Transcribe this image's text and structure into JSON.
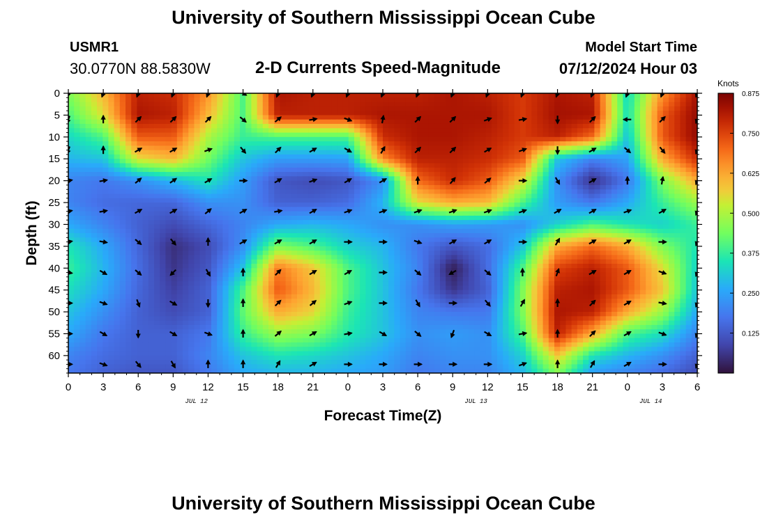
{
  "page_title": "University of Southern Mississippi Ocean Cube",
  "footer_title": "University of Southern Mississippi Ocean Cube",
  "station": {
    "name": "USMR1",
    "coords": "30.0770N  88.5830W"
  },
  "model_start": {
    "label": "Model Start Time",
    "value": "07/12/2024 Hour 03"
  },
  "chart_data": {
    "type": "heatmap",
    "title": "2-D Currents Speed-Magnitude",
    "xlabel": "Forecast Time(Z)",
    "ylabel": "Depth (ft)",
    "x_tick_labels": [
      "0",
      "3",
      "6",
      "9",
      "12",
      "15",
      "18",
      "21",
      "0",
      "3",
      "6",
      "9",
      "12",
      "15",
      "18",
      "21",
      "0",
      "3",
      "6"
    ],
    "x_hours": [
      0,
      3,
      6,
      9,
      12,
      15,
      18,
      21,
      24,
      27,
      30,
      33,
      36,
      39,
      42,
      45,
      48,
      51,
      54
    ],
    "xlim_hours": [
      0,
      54
    ],
    "date_labels": [
      {
        "label": "JUL 12",
        "hour": 11
      },
      {
        "label": "JUL 13",
        "hour": 35
      },
      {
        "label": "JUL 14",
        "hour": 50
      }
    ],
    "y_ticks": [
      0,
      5,
      10,
      15,
      20,
      25,
      30,
      35,
      40,
      45,
      50,
      55,
      60
    ],
    "ylim": [
      0,
      64
    ],
    "y_inverted": true,
    "colorbar": {
      "unit": "Knots",
      "ticks": [
        "0.125",
        "0.250",
        "0.375",
        "0.500",
        "0.625",
        "0.750",
        "0.875"
      ],
      "tick_values": [
        0.125,
        0.25,
        0.375,
        0.5,
        0.625,
        0.75,
        0.875
      ],
      "range": [
        0,
        0.875
      ],
      "colormap": "turbo"
    },
    "speed_grid": {
      "hours": [
        0,
        3,
        6,
        9,
        12,
        15,
        18,
        21,
        24,
        27,
        30,
        33,
        36,
        39,
        42,
        45,
        48,
        51,
        54
      ],
      "depths": [
        0,
        5,
        10,
        15,
        20,
        25,
        30,
        35,
        40,
        45,
        50,
        55,
        60,
        64
      ],
      "values": [
        [
          0.45,
          0.6,
          0.8,
          0.78,
          0.65,
          0.4,
          0.82,
          0.8,
          0.8,
          0.8,
          0.8,
          0.82,
          0.8,
          0.76,
          0.82,
          0.8,
          0.33,
          0.65,
          0.83
        ],
        [
          0.4,
          0.55,
          0.82,
          0.8,
          0.6,
          0.4,
          0.8,
          0.8,
          0.8,
          0.82,
          0.82,
          0.82,
          0.82,
          0.76,
          0.83,
          0.82,
          0.34,
          0.72,
          0.85
        ],
        [
          0.33,
          0.4,
          0.72,
          0.72,
          0.5,
          0.38,
          0.4,
          0.4,
          0.4,
          0.78,
          0.82,
          0.82,
          0.8,
          0.76,
          0.8,
          0.7,
          0.3,
          0.72,
          0.85
        ],
        [
          0.28,
          0.3,
          0.55,
          0.6,
          0.44,
          0.3,
          0.24,
          0.24,
          0.25,
          0.66,
          0.8,
          0.8,
          0.78,
          0.72,
          0.3,
          0.2,
          0.25,
          0.62,
          0.78
        ],
        [
          0.2,
          0.18,
          0.22,
          0.28,
          0.35,
          0.24,
          0.12,
          0.1,
          0.12,
          0.22,
          0.7,
          0.78,
          0.72,
          0.55,
          0.22,
          0.05,
          0.18,
          0.45,
          0.62
        ],
        [
          0.2,
          0.16,
          0.15,
          0.15,
          0.22,
          0.22,
          0.14,
          0.14,
          0.16,
          0.28,
          0.55,
          0.62,
          0.6,
          0.4,
          0.24,
          0.18,
          0.26,
          0.38,
          0.48
        ],
        [
          0.26,
          0.2,
          0.14,
          0.1,
          0.15,
          0.2,
          0.26,
          0.28,
          0.26,
          0.22,
          0.22,
          0.25,
          0.24,
          0.22,
          0.32,
          0.4,
          0.35,
          0.32,
          0.38
        ],
        [
          0.35,
          0.26,
          0.15,
          0.05,
          0.1,
          0.22,
          0.45,
          0.4,
          0.32,
          0.28,
          0.18,
          0.12,
          0.16,
          0.3,
          0.62,
          0.7,
          0.62,
          0.45,
          0.35
        ],
        [
          0.38,
          0.28,
          0.16,
          0.06,
          0.12,
          0.3,
          0.68,
          0.58,
          0.4,
          0.3,
          0.2,
          0.02,
          0.16,
          0.4,
          0.75,
          0.8,
          0.72,
          0.55,
          0.32
        ],
        [
          0.34,
          0.26,
          0.15,
          0.08,
          0.14,
          0.4,
          0.72,
          0.6,
          0.4,
          0.3,
          0.18,
          0.06,
          0.14,
          0.45,
          0.8,
          0.82,
          0.72,
          0.58,
          0.3
        ],
        [
          0.3,
          0.22,
          0.14,
          0.1,
          0.14,
          0.42,
          0.62,
          0.56,
          0.38,
          0.3,
          0.2,
          0.18,
          0.18,
          0.45,
          0.82,
          0.8,
          0.62,
          0.48,
          0.26
        ],
        [
          0.26,
          0.18,
          0.14,
          0.14,
          0.18,
          0.38,
          0.48,
          0.45,
          0.36,
          0.3,
          0.22,
          0.24,
          0.22,
          0.4,
          0.8,
          0.62,
          0.4,
          0.34,
          0.2
        ],
        [
          0.2,
          0.16,
          0.14,
          0.14,
          0.2,
          0.3,
          0.35,
          0.33,
          0.3,
          0.26,
          0.2,
          0.22,
          0.22,
          0.32,
          0.58,
          0.35,
          0.28,
          0.22,
          0.14
        ],
        [
          0.18,
          0.14,
          0.12,
          0.12,
          0.18,
          0.26,
          0.28,
          0.28,
          0.26,
          0.24,
          0.18,
          0.2,
          0.2,
          0.28,
          0.45,
          0.24,
          0.2,
          0.16,
          0.1
        ]
      ]
    },
    "vectors": {
      "hours": [
        0,
        3,
        6,
        9,
        12,
        15,
        18,
        21,
        24,
        27,
        30,
        33,
        36,
        39,
        42,
        45,
        48,
        51,
        54
      ],
      "depths": [
        0,
        6,
        13,
        20,
        27,
        34,
        41,
        48,
        55,
        62
      ],
      "angles_deg": [
        [
          200,
          200,
          200,
          200,
          200,
          120,
          200,
          200,
          200,
          200,
          200,
          200,
          200,
          200,
          200,
          200,
          200,
          200,
          200
        ],
        [
          200,
          0,
          45,
          45,
          45,
          130,
          50,
          80,
          110,
          10,
          45,
          45,
          70,
          80,
          180,
          45,
          270,
          45,
          200
        ],
        [
          200,
          0,
          60,
          60,
          70,
          140,
          45,
          60,
          120,
          30,
          45,
          45,
          60,
          70,
          180,
          60,
          130,
          140,
          200
        ],
        [
          80,
          80,
          50,
          55,
          60,
          90,
          60,
          70,
          60,
          60,
          0,
          40,
          50,
          90,
          150,
          60,
          0,
          10,
          200
        ],
        [
          80,
          80,
          60,
          60,
          50,
          60,
          80,
          60,
          70,
          70,
          70,
          70,
          70,
          70,
          60,
          60,
          70,
          60,
          200
        ],
        [
          80,
          100,
          130,
          140,
          0,
          60,
          60,
          60,
          90,
          90,
          110,
          60,
          60,
          90,
          30,
          60,
          60,
          90,
          200
        ],
        [
          100,
          120,
          130,
          225,
          150,
          0,
          45,
          60,
          60,
          90,
          130,
          240,
          130,
          0,
          20,
          60,
          60,
          110,
          200
        ],
        [
          90,
          110,
          160,
          120,
          180,
          0,
          45,
          50,
          70,
          90,
          150,
          90,
          140,
          30,
          0,
          45,
          60,
          100,
          200
        ],
        [
          90,
          120,
          180,
          120,
          110,
          0,
          50,
          60,
          80,
          120,
          130,
          200,
          120,
          80,
          0,
          45,
          60,
          110,
          200
        ],
        [
          90,
          110,
          140,
          150,
          0,
          0,
          30,
          60,
          90,
          90,
          90,
          90,
          90,
          70,
          0,
          30,
          60,
          90,
          200
        ]
      ]
    }
  }
}
